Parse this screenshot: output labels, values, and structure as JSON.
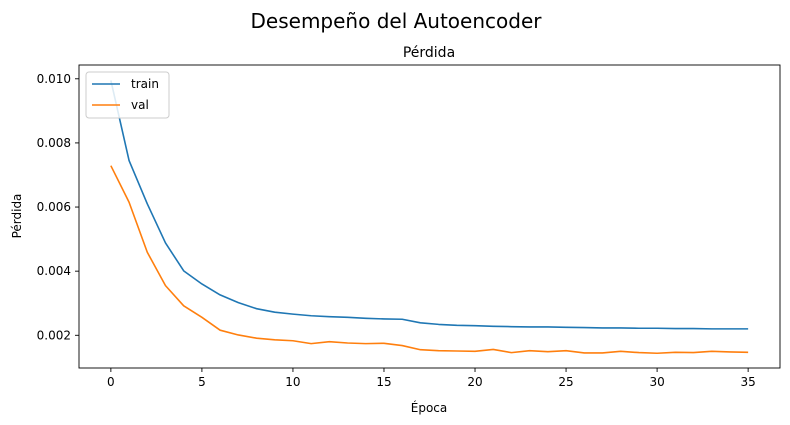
{
  "figure": {
    "suptitle": "Desempeño del Autoencoder"
  },
  "chart_data": {
    "type": "line",
    "title": "Pérdida",
    "xlabel": "Época",
    "ylabel": "Pérdida",
    "xlim": [
      -1.75,
      36.75
    ],
    "ylim": [
      0.00098,
      0.01043
    ],
    "x_ticks": [
      0,
      5,
      10,
      15,
      20,
      25,
      30,
      35
    ],
    "y_ticks": [
      0.002,
      0.004,
      0.006,
      0.008,
      0.01
    ],
    "y_tick_labels": [
      "0.002",
      "0.004",
      "0.006",
      "0.008",
      "0.010"
    ],
    "grid": false,
    "legend_position": "upper left",
    "x": [
      0,
      1,
      2,
      3,
      4,
      5,
      6,
      7,
      8,
      9,
      10,
      11,
      12,
      13,
      14,
      15,
      16,
      17,
      18,
      19,
      20,
      21,
      22,
      23,
      24,
      25,
      26,
      27,
      28,
      29,
      30,
      31,
      32,
      33,
      34,
      35
    ],
    "series": [
      {
        "name": "train",
        "color": "#1f77b4",
        "values": [
          0.00995,
          0.00745,
          0.0061,
          0.00488,
          0.00401,
          0.0036,
          0.00326,
          0.00302,
          0.00283,
          0.00272,
          0.00266,
          0.00261,
          0.00258,
          0.00256,
          0.00253,
          0.00251,
          0.0025,
          0.00239,
          0.00234,
          0.00231,
          0.0023,
          0.00228,
          0.00227,
          0.00226,
          0.00226,
          0.00225,
          0.00224,
          0.00223,
          0.00223,
          0.00222,
          0.00222,
          0.00221,
          0.00221,
          0.0022,
          0.0022,
          0.0022
        ]
      },
      {
        "name": "val",
        "color": "#ff7f0e",
        "values": [
          0.00729,
          0.00615,
          0.00459,
          0.00355,
          0.00292,
          0.00256,
          0.00216,
          0.00201,
          0.00191,
          0.00186,
          0.00183,
          0.00174,
          0.0018,
          0.00176,
          0.00174,
          0.00175,
          0.00168,
          0.00155,
          0.00152,
          0.00151,
          0.0015,
          0.00156,
          0.00146,
          0.00152,
          0.00149,
          0.00152,
          0.00145,
          0.00145,
          0.0015,
          0.00146,
          0.00144,
          0.00147,
          0.00146,
          0.0015,
          0.00148,
          0.00147
        ]
      }
    ]
  }
}
